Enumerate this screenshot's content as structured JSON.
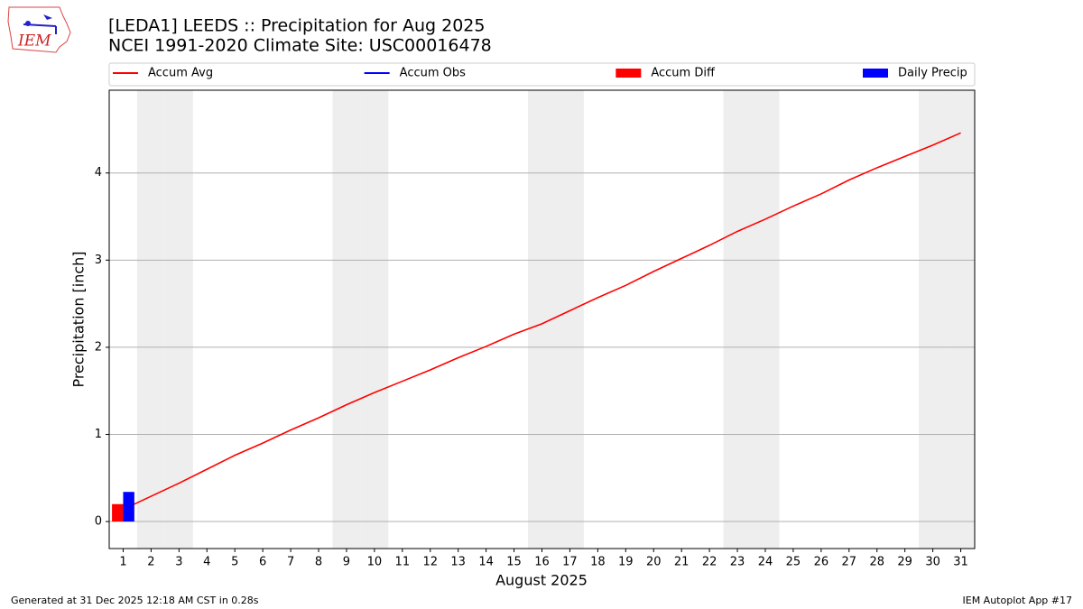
{
  "logo_text": "IEM",
  "footer_left": "Generated at 31 Dec 2025 12:18 AM CST in 0.28s",
  "footer_right": "IEM Autoplot App #17",
  "chart_data": {
    "type": "combo",
    "title": "[LEDA1] LEEDS :: Precipitation for Aug 2025",
    "subtitle": "NCEI 1991-2020 Climate Site: USC00016478",
    "xlabel": "August 2025",
    "ylabel": "Precipitation [inch]",
    "x": [
      1,
      2,
      3,
      4,
      5,
      6,
      7,
      8,
      9,
      10,
      11,
      12,
      13,
      14,
      15,
      16,
      17,
      18,
      19,
      20,
      21,
      22,
      23,
      24,
      25,
      26,
      27,
      28,
      29,
      30,
      31
    ],
    "xlim": [
      0.5,
      31.5
    ],
    "xticks": [
      1,
      2,
      3,
      4,
      5,
      6,
      7,
      8,
      9,
      10,
      11,
      12,
      13,
      14,
      15,
      16,
      17,
      18,
      19,
      20,
      21,
      22,
      23,
      24,
      25,
      26,
      27,
      28,
      29,
      30,
      31
    ],
    "ylim": [
      -0.31,
      4.95
    ],
    "yticks": [
      0,
      1,
      2,
      3,
      4
    ],
    "grid": true,
    "legend": "top",
    "shaded_days": [
      2,
      3,
      9,
      10,
      16,
      17,
      23,
      24,
      30,
      31
    ],
    "shade_color": "#eeeeee",
    "series": [
      {
        "name": "Accum Avg",
        "type": "line",
        "color": "#ff0000",
        "values": [
          0.14,
          0.29,
          0.44,
          0.6,
          0.76,
          0.9,
          1.05,
          1.19,
          1.34,
          1.48,
          1.61,
          1.74,
          1.88,
          2.01,
          2.15,
          2.27,
          2.42,
          2.57,
          2.71,
          2.87,
          3.02,
          3.17,
          3.33,
          3.47,
          3.62,
          3.76,
          3.92,
          4.06,
          4.19,
          4.32,
          4.46
        ]
      },
      {
        "name": "Accum Obs",
        "type": "line",
        "color": "#0000ff",
        "values": [
          0.34,
          null,
          null,
          null,
          null,
          null,
          null,
          null,
          null,
          null,
          null,
          null,
          null,
          null,
          null,
          null,
          null,
          null,
          null,
          null,
          null,
          null,
          null,
          null,
          null,
          null,
          null,
          null,
          null,
          null,
          null
        ]
      },
      {
        "name": "Accum Diff",
        "type": "bar",
        "color": "#ff0000",
        "values": [
          0.2,
          null,
          null,
          null,
          null,
          null,
          null,
          null,
          null,
          null,
          null,
          null,
          null,
          null,
          null,
          null,
          null,
          null,
          null,
          null,
          null,
          null,
          null,
          null,
          null,
          null,
          null,
          null,
          null,
          null,
          null
        ]
      },
      {
        "name": "Daily Precip",
        "type": "bar",
        "color": "#0000ff",
        "values": [
          0.34,
          null,
          null,
          null,
          null,
          null,
          null,
          null,
          null,
          null,
          null,
          null,
          null,
          null,
          null,
          null,
          null,
          null,
          null,
          null,
          null,
          null,
          null,
          null,
          null,
          null,
          null,
          null,
          null,
          null,
          null
        ]
      }
    ]
  }
}
